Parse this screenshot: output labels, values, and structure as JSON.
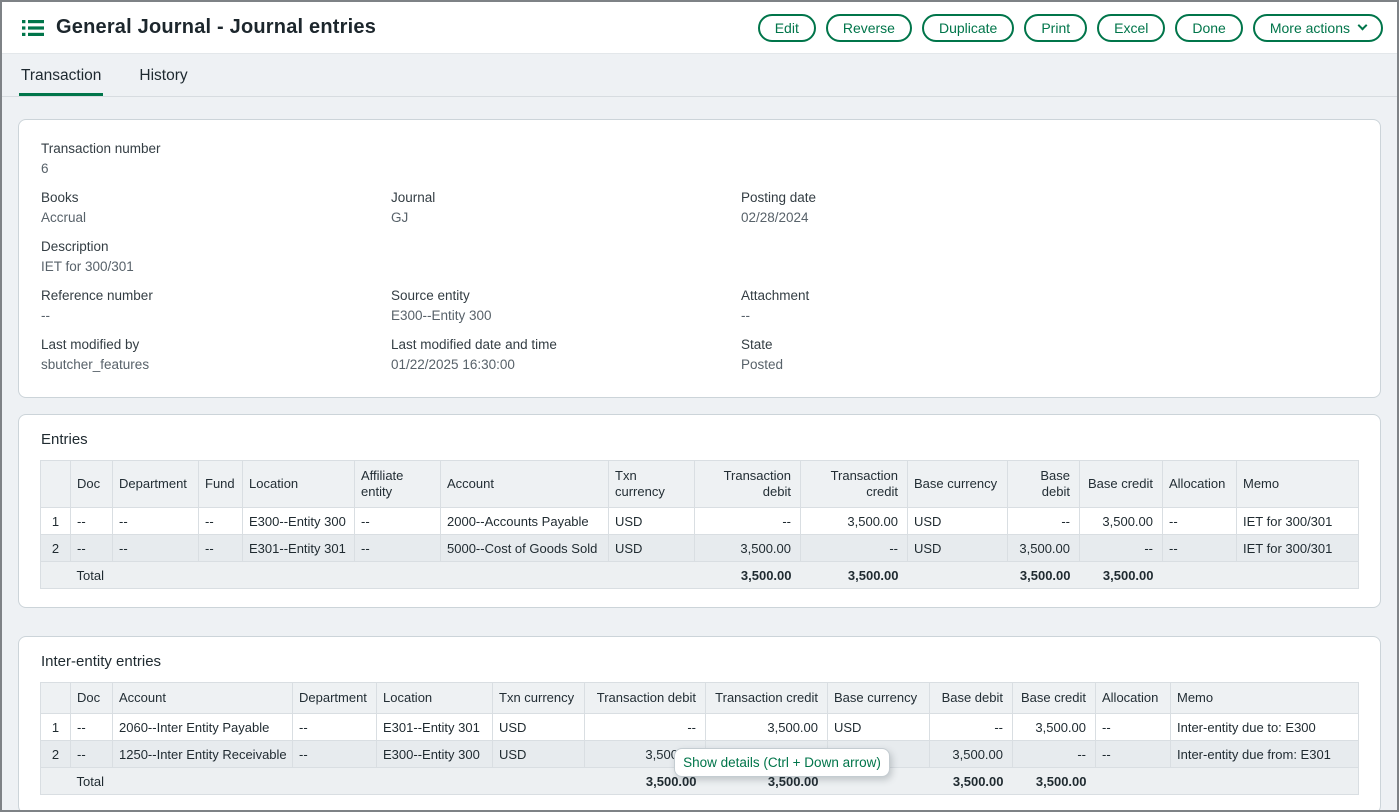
{
  "header": {
    "title": "General Journal - Journal entries",
    "actions": {
      "edit": "Edit",
      "reverse": "Reverse",
      "duplicate": "Duplicate",
      "print": "Print",
      "excel": "Excel",
      "done": "Done",
      "more": "More actions"
    }
  },
  "tabs": {
    "transaction": "Transaction",
    "history": "History"
  },
  "details": {
    "transaction_number": {
      "label": "Transaction number",
      "value": "6"
    },
    "books": {
      "label": "Books",
      "value": "Accrual"
    },
    "journal": {
      "label": "Journal",
      "value": "GJ"
    },
    "posting_date": {
      "label": "Posting date",
      "value": "02/28/2024"
    },
    "description": {
      "label": "Description",
      "value": "IET for 300/301"
    },
    "reference_number": {
      "label": "Reference number",
      "value": "--"
    },
    "source_entity": {
      "label": "Source entity",
      "value": "E300--Entity 300"
    },
    "attachment": {
      "label": "Attachment",
      "value": "--"
    },
    "last_modified_by": {
      "label": "Last modified by",
      "value": "sbutcher_features"
    },
    "last_modified_datetime": {
      "label": "Last modified date and time",
      "value": "01/22/2025 16:30:00"
    },
    "state": {
      "label": "State",
      "value": "Posted"
    }
  },
  "entries": {
    "title": "Entries",
    "columns": [
      "",
      "Doc",
      "Department",
      "Fund",
      "Location",
      "Affiliate entity",
      "Account",
      "Txn currency",
      "Transaction debit",
      "Transaction credit",
      "Base currency",
      "Base debit",
      "Base credit",
      "Allocation",
      "Memo"
    ],
    "rows": [
      [
        "1",
        "--",
        "--",
        "--",
        "E300--Entity 300",
        "--",
        "2000--Accounts Payable",
        "USD",
        "--",
        "3,500.00",
        "USD",
        "--",
        "3,500.00",
        "--",
        "IET for 300/301"
      ],
      [
        "2",
        "--",
        "--",
        "--",
        "E301--Entity 301",
        "--",
        "5000--Cost of Goods Sold",
        "USD",
        "3,500.00",
        "--",
        "USD",
        "3,500.00",
        "--",
        "--",
        "IET for 300/301"
      ]
    ],
    "total": {
      "label": "Total",
      "transaction_debit": "3,500.00",
      "transaction_credit": "3,500.00",
      "base_debit": "3,500.00",
      "base_credit": "3,500.00"
    }
  },
  "inter_entity": {
    "title": "Inter-entity entries",
    "columns": [
      "",
      "Doc",
      "Account",
      "Department",
      "Location",
      "Txn currency",
      "Transaction debit",
      "Transaction credit",
      "Base currency",
      "Base debit",
      "Base credit",
      "Allocation",
      "Memo"
    ],
    "rows": [
      [
        "1",
        "--",
        "2060--Inter Entity Payable",
        "--",
        "E301--Entity 301",
        "USD",
        "--",
        "3,500.00",
        "USD",
        "--",
        "3,500.00",
        "--",
        "Inter-entity due to: E300"
      ],
      [
        "2",
        "--",
        "1250--Inter Entity Receivable",
        "--",
        "E300--Entity 300",
        "USD",
        "3,500.00",
        "--",
        "USD",
        "3,500.00",
        "--",
        "--",
        "Inter-entity due from: E301"
      ]
    ],
    "total": {
      "label": "Total",
      "transaction_debit": "3,500.00",
      "transaction_credit": "3,500.00",
      "base_debit": "3,500.00",
      "base_credit": "3,500.00"
    }
  },
  "tooltip": {
    "text": "Show details (Ctrl + Down arrow)"
  },
  "colors": {
    "accent_green": "#00754a",
    "page_bg": "#eef1f4",
    "alt_row_bg": "#e7ebee",
    "header_bg": "#eef1f3"
  }
}
